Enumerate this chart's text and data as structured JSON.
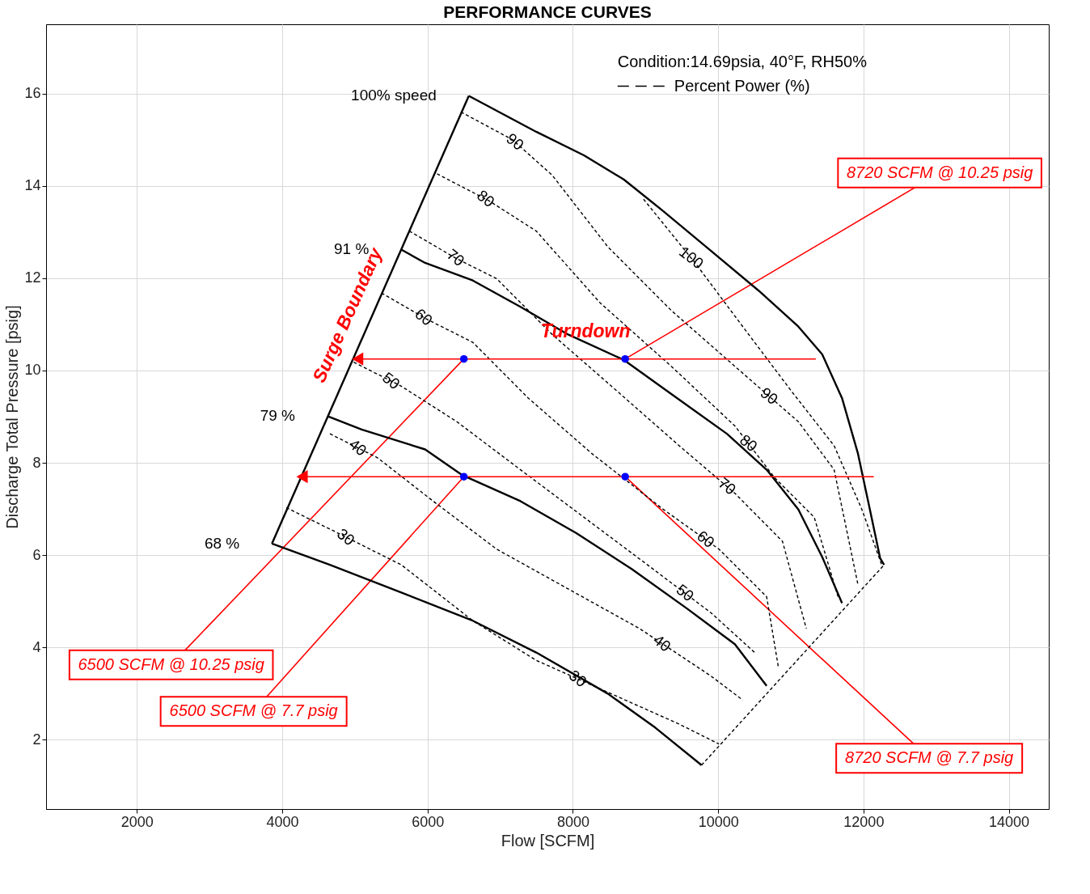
{
  "chart_data": {
    "type": "line",
    "title": "PERFORMANCE CURVES",
    "xlabel": "Flow [SCFM]",
    "ylabel": "Discharge Total Pressure [psig]",
    "xlim": [
      750,
      14550
    ],
    "ylim": [
      0.5,
      17.5
    ],
    "xticks": [
      2000,
      4000,
      6000,
      8000,
      10000,
      12000,
      14000
    ],
    "yticks": [
      2,
      4,
      6,
      8,
      10,
      12,
      14,
      16
    ],
    "grid": true,
    "series": [
      {
        "name": "100% speed",
        "color": "#000000",
        "line_style": "solid",
        "x": [
          6568,
          7497,
          8153,
          8700,
          9246,
          9902,
          10557,
          11104,
          11432,
          11705,
          11924,
          12088,
          12230,
          12284
        ],
        "values": [
          15.95,
          15.17,
          14.66,
          14.14,
          13.45,
          12.59,
          11.73,
          10.95,
          10.35,
          9.4,
          8.2,
          6.99,
          5.93,
          5.79
        ]
      },
      {
        "name": "91 %",
        "color": "#000000",
        "line_style": "solid",
        "x": [
          5639,
          5967,
          6623,
          7279,
          7934,
          8700,
          9355,
          10120,
          10667,
          11104,
          11432,
          11705
        ],
        "values": [
          12.62,
          12.33,
          11.95,
          11.38,
          10.78,
          10.23,
          9.49,
          8.63,
          7.85,
          6.99,
          5.96,
          4.96
        ]
      },
      {
        "name": "79 %",
        "color": "#000000",
        "line_style": "solid",
        "x": [
          4623,
          5093,
          5967,
          6481,
          7279,
          8044,
          8809,
          9574,
          10230,
          10667
        ],
        "values": [
          9.01,
          8.72,
          8.29,
          7.73,
          7.17,
          6.48,
          5.7,
          4.84,
          4.07,
          3.17
        ]
      },
      {
        "name": "68 %",
        "color": "#000000",
        "line_style": "solid",
        "x": [
          3858,
          4656,
          5639,
          6623,
          7497,
          8481,
          9137,
          9771
        ],
        "values": [
          6.25,
          5.79,
          5.19,
          4.58,
          3.89,
          3.0,
          2.26,
          1.45
        ]
      },
      {
        "color": "#000000",
        "line_style": "solid",
        "x": [
          3858,
          6568
        ],
        "values": [
          6.25,
          15.95
        ]
      },
      {
        "color": "#000000",
        "line_style": "dashed",
        "x": [
          9771,
          12284
        ],
        "values": [
          1.45,
          5.79
        ]
      },
      {
        "color": "#000000",
        "line_style": "dashed",
        "x": [
          8973,
          9683,
          10339,
          10995,
          11596,
          11978,
          12251
        ],
        "values": [
          13.71,
          12.33,
          10.95,
          9.58,
          8.37,
          6.99,
          5.79
        ]
      },
      {
        "color": "#000000",
        "line_style": "dashed",
        "x": [
          6459,
          7169,
          7716,
          8481,
          9355,
          10230,
          11104,
          11596,
          11924
        ],
        "values": [
          15.6,
          15.0,
          14.23,
          12.68,
          11.3,
          10.09,
          8.89,
          7.85,
          5.36
        ]
      },
      {
        "color": "#000000",
        "line_style": "dashed",
        "x": [
          6131,
          6842,
          7497,
          8372,
          9355,
          10230,
          10776,
          11322,
          11650
        ],
        "values": [
          14.26,
          13.68,
          13.02,
          11.47,
          10.09,
          8.8,
          7.68,
          6.82,
          5.1
        ]
      },
      {
        "color": "#000000",
        "line_style": "dashed",
        "x": [
          5749,
          6404,
          6951,
          7716,
          8590,
          9464,
          10230,
          10885,
          11213
        ],
        "values": [
          13.02,
          12.42,
          11.99,
          10.78,
          9.58,
          8.37,
          7.34,
          6.3,
          4.41
        ]
      },
      {
        "color": "#000000",
        "line_style": "dashed",
        "x": [
          5366,
          5967,
          6623,
          7388,
          8262,
          9246,
          10011,
          10667,
          10831
        ],
        "values": [
          11.68,
          11.13,
          10.61,
          9.4,
          8.2,
          6.99,
          6.13,
          5.1,
          3.55
        ]
      },
      {
        "color": "#000000",
        "line_style": "dashed",
        "x": [
          4984,
          5639,
          6404,
          7279,
          8153,
          9027,
          9902,
          10503
        ],
        "values": [
          10.18,
          9.66,
          8.89,
          7.85,
          6.82,
          5.79,
          4.75,
          3.89
        ]
      },
      {
        "color": "#000000",
        "line_style": "dashed",
        "x": [
          4656,
          5311,
          6077,
          6951,
          7934,
          8918,
          9902,
          10339
        ],
        "values": [
          8.63,
          8.11,
          7.17,
          6.13,
          5.27,
          4.41,
          3.38,
          2.86
        ]
      },
      {
        "color": "#000000",
        "line_style": "dashed",
        "x": [
          4055,
          4765,
          5639,
          6623,
          7497,
          8481,
          9464,
          10011
        ],
        "values": [
          7.03,
          6.48,
          5.79,
          4.58,
          3.72,
          3.03,
          2.34,
          1.91
        ]
      },
      {
        "color": "#ff0000",
        "line_style": "solid",
        "marker": "triangle",
        "x": [
          5038,
          11344
        ],
        "values": [
          10.25,
          10.25
        ]
      },
      {
        "color": "#ff0000",
        "line_style": "solid",
        "marker": "triangle",
        "x": [
          4273,
          12142
        ],
        "values": [
          7.7,
          7.7
        ]
      },
      {
        "type": "scatter",
        "color": "#0000ff",
        "x": [
          6500,
          8720,
          6500,
          8720
        ],
        "values": [
          10.25,
          10.25,
          7.7,
          7.7
        ]
      }
    ],
    "annotations": [
      "Condition:14.69psia, 40°F, RH50%",
      "Percent Power (%)",
      "Surge Boundary",
      "Turndown",
      {
        "text": "8720 SCFM @ 10.25 psig",
        "x": 8720,
        "y": 10.25
      },
      {
        "text": "6500 SCFM @ 10.25 psig",
        "x": 6500,
        "y": 10.25
      },
      {
        "text": "6500 SCFM @ 7.7 psig",
        "x": 6500,
        "y": 7.7
      },
      {
        "text": "8720 SCFM @ 7.7 psig",
        "x": 8720,
        "y": 7.7
      },
      {
        "text": "90",
        "x": 7202,
        "y": 14.95
      },
      {
        "text": "80",
        "x": 6798,
        "y": 13.72
      },
      {
        "text": "70",
        "x": 6383,
        "y": 12.44
      },
      {
        "text": "60",
        "x": 5945,
        "y": 11.15
      },
      {
        "text": "50",
        "x": 5497,
        "y": 9.77
      },
      {
        "text": "40",
        "x": 5038,
        "y": 8.33
      },
      {
        "text": "30",
        "x": 4874,
        "y": 6.39
      },
      {
        "text": "100",
        "x": 9628,
        "y": 12.44
      },
      {
        "text": "90",
        "x": 10700,
        "y": 9.44
      },
      {
        "text": "80",
        "x": 10415,
        "y": 8.42
      },
      {
        "text": "70",
        "x": 10120,
        "y": 7.49
      },
      {
        "text": "60",
        "x": 9825,
        "y": 6.34
      },
      {
        "text": "50",
        "x": 9541,
        "y": 5.18
      },
      {
        "text": "40",
        "x": 9224,
        "y": 4.09
      },
      {
        "text": "30",
        "x": 8066,
        "y": 3.32
      }
    ]
  }
}
